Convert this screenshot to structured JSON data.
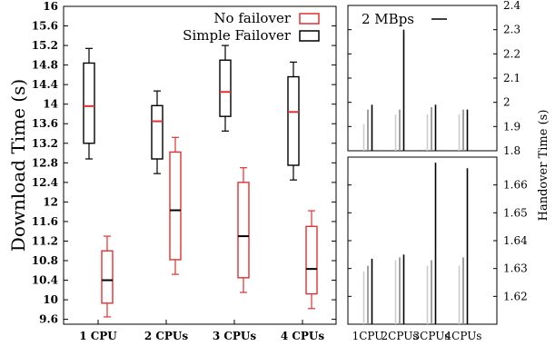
{
  "chart_data": [
    {
      "type": "box",
      "ylabel": "Download Time (s)",
      "ylim": [
        9.5,
        16
      ],
      "yticks": [
        9.6,
        10,
        10.4,
        10.8,
        11.2,
        11.6,
        12,
        12.4,
        12.8,
        13.2,
        13.6,
        14,
        14.4,
        14.8,
        15.2,
        15.6,
        16
      ],
      "categories": [
        "1 CPU",
        "2 CPUs",
        "3 CPUs",
        "4 CPUs"
      ],
      "legend_position": "top-right",
      "series": [
        {
          "name": "No failover",
          "color": "#e03030",
          "median_color": "#000000",
          "boxes": [
            {
              "whisker_low": 9.65,
              "q1": 9.93,
              "median": 10.4,
              "q3": 11.0,
              "whisker_high": 11.3
            },
            {
              "whisker_low": 10.52,
              "q1": 10.82,
              "median": 11.83,
              "q3": 13.02,
              "whisker_high": 13.32
            },
            {
              "whisker_low": 10.15,
              "q1": 10.45,
              "median": 11.3,
              "q3": 12.4,
              "whisker_high": 12.7
            },
            {
              "whisker_low": 9.82,
              "q1": 10.12,
              "median": 10.63,
              "q3": 11.5,
              "whisker_high": 11.82
            }
          ]
        },
        {
          "name": "Simple Failover",
          "color": "#000000",
          "median_color": "#e03030",
          "boxes": [
            {
              "whisker_low": 12.88,
              "q1": 13.2,
              "median": 13.96,
              "q3": 14.84,
              "whisker_high": 15.14
            },
            {
              "whisker_low": 12.58,
              "q1": 12.88,
              "median": 13.65,
              "q3": 13.97,
              "whisker_high": 14.27
            },
            {
              "whisker_low": 13.45,
              "q1": 13.75,
              "median": 14.25,
              "q3": 14.9,
              "whisker_high": 15.2
            },
            {
              "whisker_low": 12.45,
              "q1": 12.75,
              "median": 13.84,
              "q3": 14.56,
              "whisker_high": 14.86
            }
          ]
        }
      ]
    },
    {
      "type": "bar",
      "ylabel": "Handover Time (s)",
      "categories": [
        "1CPU",
        "2CPUs",
        "3CPUs",
        "4CPUs"
      ],
      "legend": "2 MBps",
      "panels": [
        {
          "ylim": [
            1.8,
            2.4
          ],
          "yticks": [
            1.8,
            1.9,
            2,
            2.1,
            2.2,
            2.3,
            2.4
          ],
          "groups": [
            [
              1.91,
              1.97,
              1.99
            ],
            [
              1.95,
              1.97,
              2.3
            ],
            [
              1.95,
              1.98,
              1.99
            ],
            [
              1.95,
              1.97,
              1.97
            ]
          ]
        },
        {
          "ylim": [
            1.61,
            1.67
          ],
          "yticks": [
            1.62,
            1.63,
            1.64,
            1.65,
            1.66
          ],
          "groups": [
            [
              1.629,
              1.631,
              1.6335
            ],
            [
              1.633,
              1.634,
              1.635
            ],
            [
              1.631,
              1.633,
              1.668
            ],
            [
              1.631,
              1.634,
              1.666
            ]
          ]
        }
      ],
      "series_colors": [
        "#cccccc",
        "#888888",
        "#000000"
      ]
    }
  ]
}
